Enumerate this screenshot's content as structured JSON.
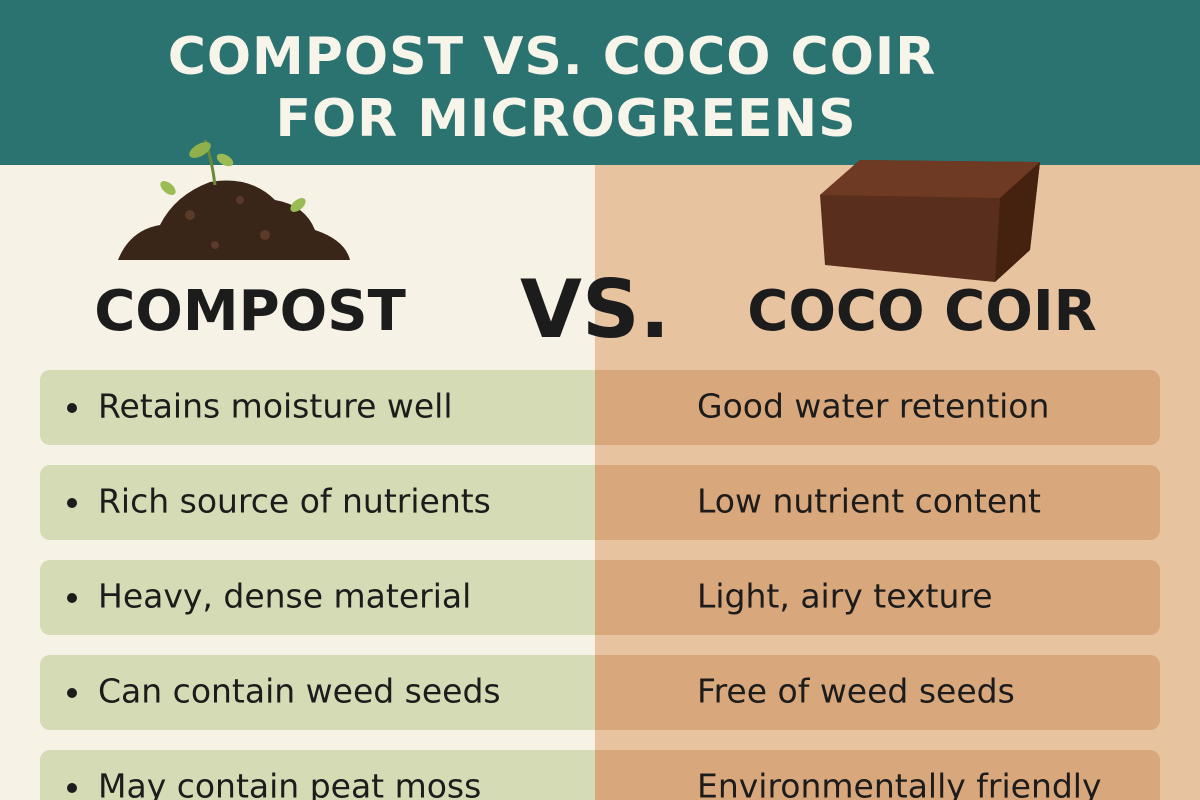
{
  "header": {
    "title_lines": [
      "COMPOST VS. COCO COIR",
      "FOR MICROGREENS"
    ]
  },
  "left": {
    "label": "COMPOST",
    "items": [
      "Retains moisture well",
      "Rich source of nutrients",
      "Heavy, dense material",
      "Can contain weed seeds",
      "May contain peat moss"
    ]
  },
  "vs": "VS.",
  "right": {
    "label": "COCO COIR",
    "items": [
      "Good water retention",
      "Low nutrient content",
      "Light, airy texture",
      "Free of weed seeds",
      "Environmentally friendly"
    ]
  }
}
